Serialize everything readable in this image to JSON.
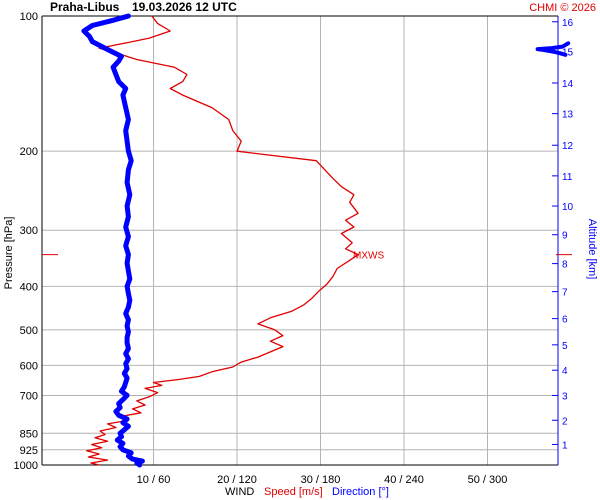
{
  "header": {
    "station": "Praha-Libus",
    "datetime": "19.03.2026 12 UTC",
    "copyright": "CHMI © 2026"
  },
  "colors": {
    "speed": "#e00000",
    "direction": "#0000ff",
    "grid": "#b4b4b4",
    "text": "#000000"
  },
  "chart_data": {
    "type": "line",
    "y_left": {
      "label": "Pressure [hPa]",
      "scale": "log",
      "range": [
        1000,
        100
      ],
      "ticks": [
        100,
        200,
        300,
        400,
        500,
        600,
        700,
        850,
        925,
        1000
      ],
      "tick_labels": [
        "100",
        "200",
        "300",
        "400",
        "500",
        "600",
        "700",
        "850",
        "925",
        "1000"
      ]
    },
    "y_right": {
      "label": "Altitude [km]",
      "ticks": [
        1,
        2,
        3,
        4,
        5,
        6,
        7,
        8,
        9,
        10,
        11,
        12,
        13,
        14,
        15,
        16
      ],
      "tick_labels": [
        "1",
        "2",
        "3",
        "4",
        "5",
        "6",
        "7",
        "8",
        "9",
        "10",
        "11",
        "12",
        "13",
        "14",
        "15",
        "16"
      ],
      "tick_pressures": [
        900,
        795,
        700,
        615,
        540,
        472,
        411,
        356,
        307,
        265,
        227,
        194,
        165,
        141,
        120,
        103
      ]
    },
    "x": {
      "label_wind": "WIND",
      "label_speed": "Speed [m/s]",
      "label_direction": "Direction [°]",
      "speed_range": [
        0,
        60
      ],
      "ticks_speed": [
        10,
        20,
        30,
        40,
        50
      ],
      "tick_labels": [
        "10 / 60",
        "20 / 120",
        "30 / 180",
        "40 / 240",
        "50 / 300"
      ]
    },
    "annotation": {
      "label": "MXWS",
      "pressure": 340
    },
    "series": [
      {
        "name": "Speed [m/s]",
        "axis": "speed",
        "points": [
          [
            1000,
            3.5
          ],
          [
            990,
            2.5
          ],
          [
            975,
            4.5
          ],
          [
            960,
            2.2
          ],
          [
            945,
            3.5
          ],
          [
            930,
            2.0
          ],
          [
            915,
            3.8
          ],
          [
            900,
            2.6
          ],
          [
            885,
            4.5
          ],
          [
            870,
            3.0
          ],
          [
            855,
            4.2
          ],
          [
            840,
            3.6
          ],
          [
            825,
            5.5
          ],
          [
            810,
            4.5
          ],
          [
            795,
            7.0
          ],
          [
            780,
            6.0
          ],
          [
            765,
            8.5
          ],
          [
            750,
            7.5
          ],
          [
            735,
            9.0
          ],
          [
            720,
            8.0
          ],
          [
            705,
            9.5
          ],
          [
            690,
            10.5
          ],
          [
            675,
            9.0
          ],
          [
            665,
            11.0
          ],
          [
            655,
            10.0
          ],
          [
            645,
            13.0
          ],
          [
            635,
            15.5
          ],
          [
            620,
            17.0
          ],
          [
            605,
            19.5
          ],
          [
            590,
            20.5
          ],
          [
            575,
            22.5
          ],
          [
            560,
            24.0
          ],
          [
            545,
            25.5
          ],
          [
            530,
            24.0
          ],
          [
            515,
            25.5
          ],
          [
            500,
            24.5
          ],
          [
            485,
            22.5
          ],
          [
            470,
            24.0
          ],
          [
            455,
            26.5
          ],
          [
            440,
            28.0
          ],
          [
            425,
            29.0
          ],
          [
            410,
            29.8
          ],
          [
            395,
            30.8
          ],
          [
            380,
            31.5
          ],
          [
            365,
            32.0
          ],
          [
            350,
            33.5
          ],
          [
            340,
            34.5
          ],
          [
            330,
            33.0
          ],
          [
            320,
            33.8
          ],
          [
            305,
            32.5
          ],
          [
            295,
            34.0
          ],
          [
            285,
            33.0
          ],
          [
            275,
            34.5
          ],
          [
            260,
            33.5
          ],
          [
            250,
            34.0
          ],
          [
            240,
            32.5
          ],
          [
            230,
            31.5
          ],
          [
            220,
            30.5
          ],
          [
            210,
            29.5
          ],
          [
            200,
            20.0
          ],
          [
            190,
            20.5
          ],
          [
            180,
            19.5
          ],
          [
            170,
            19.0
          ],
          [
            160,
            17.0
          ],
          [
            150,
            13.5
          ],
          [
            145,
            12.0
          ],
          [
            140,
            13.5
          ],
          [
            135,
            14.0
          ],
          [
            130,
            12.5
          ],
          [
            125,
            8.0
          ],
          [
            120,
            5.0
          ],
          [
            118,
            3.5
          ],
          [
            115,
            6.5
          ],
          [
            112,
            9.5
          ],
          [
            108,
            12.0
          ],
          [
            104,
            10.5
          ],
          [
            100,
            9.8
          ]
        ]
      },
      {
        "name": "Direction [°]",
        "axis": "direction",
        "points": [
          [
            1000,
            50
          ],
          [
            990,
            48
          ],
          [
            980,
            52
          ],
          [
            970,
            45
          ],
          [
            955,
            42
          ],
          [
            940,
            44
          ],
          [
            925,
            38
          ],
          [
            910,
            36
          ],
          [
            895,
            38
          ],
          [
            880,
            34
          ],
          [
            865,
            37
          ],
          [
            850,
            36
          ],
          [
            835,
            39
          ],
          [
            820,
            42
          ],
          [
            805,
            38
          ],
          [
            790,
            41
          ],
          [
            775,
            35
          ],
          [
            760,
            33
          ],
          [
            745,
            36
          ],
          [
            730,
            35
          ],
          [
            715,
            38
          ],
          [
            700,
            41
          ],
          [
            685,
            37
          ],
          [
            670,
            39
          ],
          [
            655,
            40
          ],
          [
            640,
            41
          ],
          [
            625,
            39
          ],
          [
            610,
            41
          ],
          [
            595,
            40
          ],
          [
            580,
            42
          ],
          [
            565,
            40
          ],
          [
            550,
            42
          ],
          [
            535,
            41
          ],
          [
            520,
            41
          ],
          [
            505,
            42
          ],
          [
            490,
            41
          ],
          [
            475,
            42
          ],
          [
            460,
            40
          ],
          [
            445,
            42
          ],
          [
            430,
            43
          ],
          [
            415,
            42
          ],
          [
            400,
            41
          ],
          [
            385,
            43
          ],
          [
            370,
            42
          ],
          [
            355,
            41
          ],
          [
            340,
            42
          ],
          [
            325,
            40
          ],
          [
            310,
            42
          ],
          [
            295,
            40
          ],
          [
            280,
            42
          ],
          [
            265,
            41
          ],
          [
            250,
            43
          ],
          [
            235,
            41
          ],
          [
            220,
            42
          ],
          [
            210,
            44
          ],
          [
            200,
            42
          ],
          [
            190,
            41
          ],
          [
            180,
            40
          ],
          [
            170,
            42
          ],
          [
            160,
            40
          ],
          [
            150,
            38
          ],
          [
            145,
            40
          ],
          [
            140,
            35
          ],
          [
            135,
            33
          ],
          [
            130,
            31
          ],
          [
            126,
            35
          ],
          [
            123,
            37
          ],
          [
            120,
            30
          ],
          [
            117,
            23
          ],
          [
            114,
            16
          ],
          [
            111,
            14
          ],
          [
            108,
            10
          ],
          [
            105,
            16
          ],
          [
            102,
            32
          ],
          [
            100,
            42
          ]
        ],
        "wrap_segment": [
          [
            122,
            356
          ],
          [
            121,
            352
          ],
          [
            120,
            347
          ],
          [
            119,
            340
          ],
          [
            118.5,
            336
          ],
          [
            118,
            345
          ],
          [
            117.5,
            350
          ],
          [
            117,
            354
          ],
          [
            116,
            356
          ],
          [
            115,
            358
          ]
        ]
      }
    ]
  }
}
